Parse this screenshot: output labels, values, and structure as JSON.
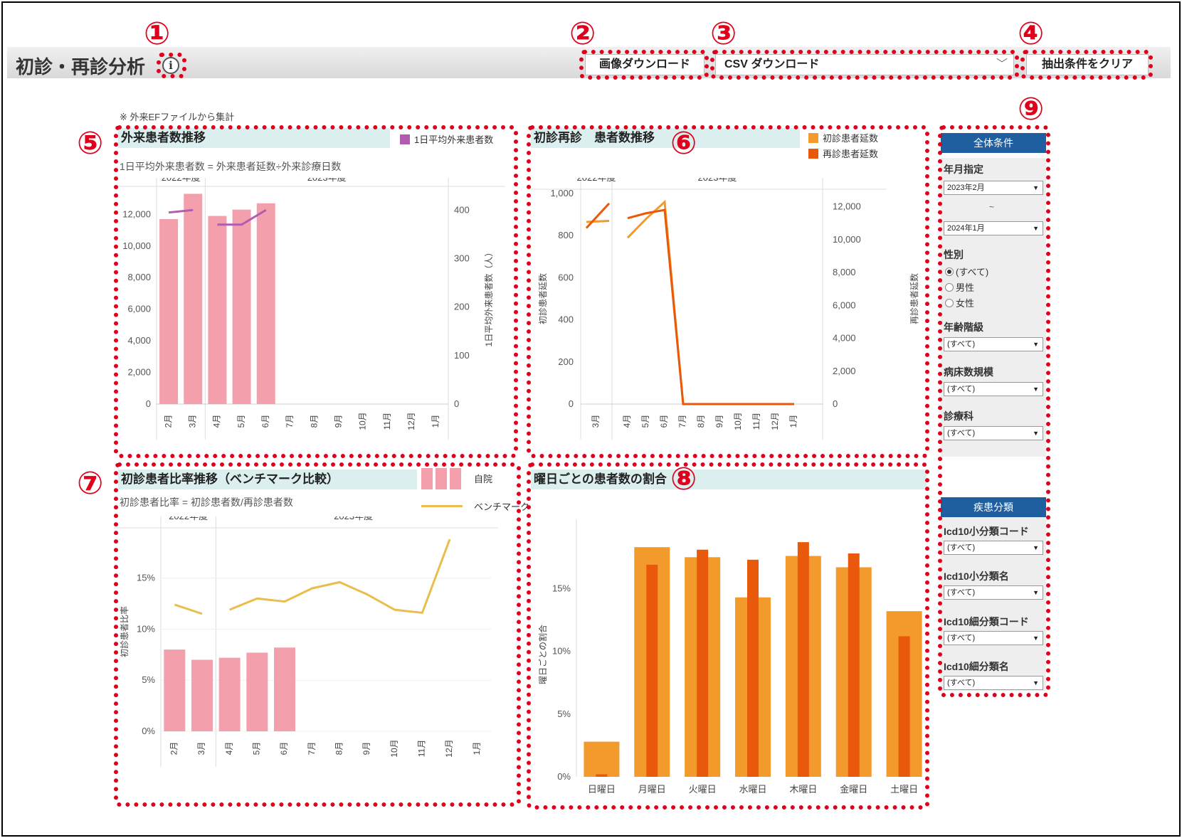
{
  "header": {
    "title": "初診・再診分析",
    "info_icon": "info-icon",
    "image_download_label": "画像ダウンロード",
    "csv_download_label": "CSV ダウンロード",
    "clear_filters_label": "抽出条件をクリア"
  },
  "note": "※ 外来EFファイルから集計",
  "annotations": [
    "①",
    "②",
    "③",
    "④",
    "⑤",
    "⑥",
    "⑦",
    "⑧",
    "⑨"
  ],
  "panel5": {
    "title": "外来患者数推移",
    "formula": "1日平均外来患者数 = 外来患者延数÷外来診療日数",
    "legend": "1日平均外来患者数",
    "color_bar": "#f4a0ac",
    "color_line": "#b05db0",
    "right_axis_label": "1日平均外来患者数（人）"
  },
  "panel6": {
    "title": "初診再診　患者数推移",
    "legend_first": "初診患者延数",
    "legend_revisit": "再診患者延数",
    "color_first": "#f39a2d",
    "color_revisit": "#e8590c",
    "left_axis_label": "初診患者延数",
    "right_axis_label": "再診患者延数"
  },
  "panel7": {
    "title": "初診患者比率推移（ベンチマーク比較）",
    "formula": "初診患者比率 = 初診患者数/再診患者数",
    "legend_own": "自院",
    "legend_bench": "ベンチマーク",
    "color_bar": "#f4a0ac",
    "color_line": "#e9be4c",
    "y_axis_label": "初診患者比率"
  },
  "panel8": {
    "title": "曜日ごとの患者数の割合",
    "y_axis_label": "曜日ごとの割合",
    "color_outer": "#f39a2d",
    "color_inner": "#e8590c"
  },
  "filters": {
    "general_header": "全体条件",
    "month_label": "年月指定",
    "month_from": "2023年2月",
    "tilde": "~",
    "month_to": "2024年1月",
    "sex_label": "性別",
    "sex_options": [
      "(すべて)",
      "男性",
      "女性"
    ],
    "age_label": "年齢階級",
    "age_value": "(すべて)",
    "beds_label": "病床数規模",
    "beds_value": "(すべて)",
    "dept_label": "診療科",
    "dept_value": "(すべて)",
    "disease_header": "疾患分類",
    "icd_small_code_label": "Icd10小分類コード",
    "icd_small_code_value": "(すべて)",
    "icd_small_name_label": "Icd10小分類名",
    "icd_small_name_value": "(すべて)",
    "icd_fine_code_label": "Icd10細分類コード",
    "icd_fine_code_value": "(すべて)",
    "icd_fine_name_label": "Icd10細分類名",
    "icd_fine_name_value": "(すべて)"
  },
  "chart_data": [
    {
      "type": "bar",
      "panel": "外来患者数推移",
      "fiscal_years": [
        "2022年度",
        "2023年度"
      ],
      "categories": [
        "2月",
        "3月",
        "4月",
        "5月",
        "6月",
        "7月",
        "8月",
        "9月",
        "10月",
        "11月",
        "12月",
        "1月"
      ],
      "values": [
        11700,
        13300,
        11900,
        12300,
        12700,
        null,
        null,
        null,
        null,
        null,
        null,
        null
      ],
      "line_values": [
        395,
        400,
        370,
        370,
        400,
        null,
        null,
        null,
        null,
        null,
        null,
        null
      ],
      "ylim": [
        0,
        13500
      ],
      "y_ticks": [
        0,
        2000,
        4000,
        6000,
        8000,
        10000,
        12000
      ],
      "y_tick_labels": [
        "0",
        "2,000",
        "4,000",
        "6,000",
        "8,000",
        "10,000",
        "12,000"
      ],
      "y2lim": [
        0,
        440
      ],
      "y2_ticks": [
        0,
        100,
        200,
        300,
        400
      ],
      "y2_tick_labels": [
        "0",
        "100",
        "200",
        "300",
        "400"
      ]
    },
    {
      "type": "line",
      "panel": "初診再診　患者数推移",
      "fiscal_years": [
        "2022年度",
        "2023年度"
      ],
      "categories": [
        "3月",
        "4月",
        "5月",
        "6月",
        "7月",
        "8月",
        "9月",
        "10月",
        "11月",
        "12月",
        "1月"
      ],
      "series": [
        {
          "name": "初診患者延数",
          "axis": "left",
          "values": [
            870,
            790,
            880,
            960,
            0,
            0,
            0,
            0,
            0,
            0,
            0
          ],
          "stub": [
            865,
            870
          ]
        },
        {
          "name": "再診患者延数",
          "axis": "right",
          "values": [
            12200,
            11300,
            11600,
            11800,
            0,
            0,
            0,
            0,
            0,
            0,
            0
          ],
          "stub": [
            10700,
            12200
          ]
        }
      ],
      "ylim": [
        0,
        1000
      ],
      "y_ticks": [
        0,
        200,
        400,
        600,
        800,
        1000
      ],
      "y_tick_labels": [
        "0",
        "200",
        "400",
        "600",
        "800",
        "1,000"
      ],
      "y2lim": [
        0,
        12800
      ],
      "y2_ticks": [
        0,
        2000,
        4000,
        6000,
        8000,
        10000,
        12000
      ],
      "y2_tick_labels": [
        "0",
        "2,000",
        "4,000",
        "6,000",
        "8,000",
        "10,000",
        "12,000"
      ]
    },
    {
      "type": "bar",
      "panel": "初診患者比率推移（ベンチマーク比較）",
      "fiscal_years": [
        "2022年度",
        "2023年度"
      ],
      "categories": [
        "2月",
        "3月",
        "4月",
        "5月",
        "6月",
        "7月",
        "8月",
        "9月",
        "10月",
        "11月",
        "12月",
        "1月"
      ],
      "series": [
        {
          "name": "自院",
          "values": [
            8.0,
            7.0,
            7.2,
            7.7,
            8.2,
            null,
            null,
            null,
            null,
            null,
            null,
            null
          ]
        },
        {
          "name": "ベンチマーク",
          "values": [
            12.4,
            11.5,
            11.9,
            13.0,
            12.7,
            14.0,
            14.6,
            13.4,
            11.9,
            11.6,
            18.8,
            null
          ]
        }
      ],
      "ylim": [
        0,
        19.5
      ],
      "y_ticks": [
        0,
        5,
        10,
        15
      ],
      "y_tick_labels": [
        "0%",
        "5%",
        "10%",
        "15%"
      ]
    },
    {
      "type": "bar",
      "panel": "曜日ごとの患者数の割合",
      "categories": [
        "日曜日",
        "月曜日",
        "火曜日",
        "水曜日",
        "木曜日",
        "金曜日",
        "土曜日"
      ],
      "series": [
        {
          "values": [
            2.8,
            18.3,
            17.5,
            14.3,
            17.6,
            16.7,
            13.2
          ]
        },
        {
          "values": [
            0.2,
            16.9,
            18.1,
            17.3,
            18.7,
            17.8,
            11.2
          ]
        }
      ],
      "ylim": [
        0,
        19.5
      ],
      "y_ticks": [
        0,
        5,
        10,
        15
      ],
      "y_tick_labels": [
        "0%",
        "5%",
        "10%",
        "15%"
      ]
    }
  ]
}
